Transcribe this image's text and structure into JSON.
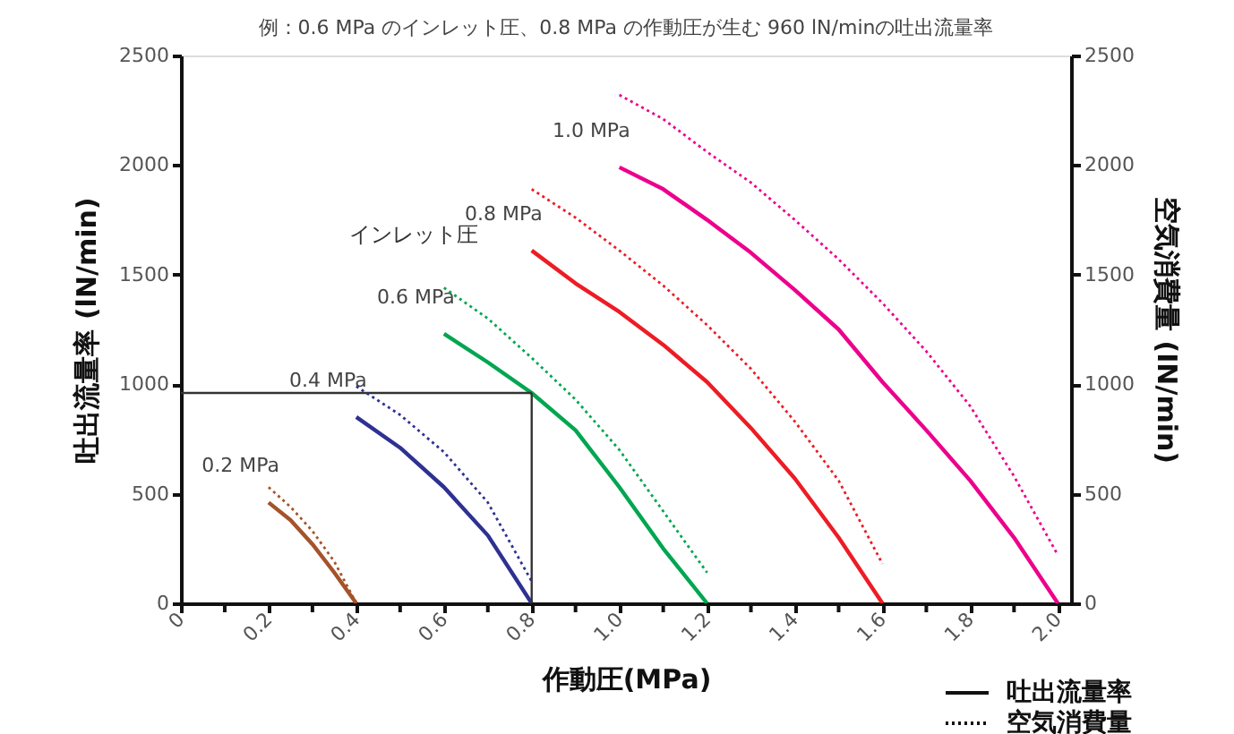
{
  "chart_data": {
    "type": "line",
    "title": "例：0.6 MPa のインレット圧、0.8 MPa の作動圧が生む 960 lN/minの吐出流量率",
    "xlabel": "作動圧(MPa)",
    "ylabel": "吐出流量率 (lN/min)",
    "y2label": "空気消費量 (IN/min)",
    "xlim": [
      0,
      2.03
    ],
    "xticks": [
      0,
      {
        "value": 0.1,
        "label": null
      },
      0.2,
      {
        "value": 0.3,
        "label": null
      },
      0.4,
      {
        "value": 0.5,
        "label": null
      },
      0.6,
      {
        "value": 0.7,
        "label": null
      },
      0.8,
      {
        "value": 0.9,
        "label": null
      },
      {
        "value": 1.0,
        "label": "1.0"
      },
      {
        "value": 1.1,
        "label": null
      },
      1.2,
      {
        "value": 1.3,
        "label": null
      },
      1.4,
      {
        "value": 1.5,
        "label": null
      },
      1.6,
      {
        "value": 1.7,
        "label": null
      },
      1.8,
      {
        "value": 1.9,
        "label": null
      },
      {
        "value": 2.0,
        "label": "2.0"
      }
    ],
    "ylim": [
      0,
      2500
    ],
    "yticks": [
      0,
      500,
      1000,
      1500,
      2000,
      2500
    ],
    "y2lim": [
      0,
      2500
    ],
    "y2ticks": [
      0,
      500,
      1000,
      1500,
      2000,
      2500
    ],
    "grid": false,
    "marker": "none",
    "series": [
      {
        "name": "0.2 MPa",
        "color": "#a5532a",
        "line_style": "solid",
        "x": [
          0.2,
          0.25,
          0.3,
          0.35,
          0.4
        ],
        "values": [
          460,
          380,
          270,
          140,
          0
        ]
      },
      {
        "name": "0.4 MPa",
        "color": "#2e3192",
        "line_style": "solid",
        "x": [
          0.4,
          0.5,
          0.6,
          0.7,
          0.8
        ],
        "values": [
          850,
          710,
          530,
          310,
          0
        ]
      },
      {
        "name": "0.6 MPa",
        "color": "#00a650",
        "line_style": "solid",
        "x": [
          0.6,
          0.7,
          0.8,
          0.9,
          1.0,
          1.1,
          1.2
        ],
        "values": [
          1230,
          1100,
          960,
          790,
          530,
          250,
          0
        ]
      },
      {
        "name": "0.8 MPa",
        "color": "#ed1c24",
        "line_style": "solid",
        "x": [
          0.8,
          0.9,
          1.0,
          1.1,
          1.2,
          1.3,
          1.4,
          1.5,
          1.6
        ],
        "values": [
          1610,
          1460,
          1330,
          1180,
          1010,
          800,
          570,
          300,
          0
        ]
      },
      {
        "name": "1.0 MPa",
        "color": "#ec008c",
        "line_style": "solid",
        "x": [
          1.0,
          1.1,
          1.2,
          1.3,
          1.4,
          1.5,
          1.6,
          1.7,
          1.8,
          1.9,
          2.0
        ],
        "values": [
          1990,
          1890,
          1750,
          1600,
          1430,
          1250,
          1010,
          790,
          560,
          300,
          0
        ]
      },
      {
        "color": "#a5532a",
        "line_style": "dotted",
        "axis": "y2",
        "x": [
          0.2,
          0.25,
          0.3,
          0.35,
          0.4
        ],
        "values": [
          530,
          440,
          330,
          190,
          0
        ]
      },
      {
        "color": "#2e3192",
        "line_style": "dotted",
        "axis": "y2",
        "x": [
          0.4,
          0.5,
          0.6,
          0.7,
          0.8
        ],
        "values": [
          990,
          860,
          690,
          460,
          100
        ]
      },
      {
        "color": "#00a650",
        "line_style": "dotted",
        "axis": "y2",
        "x": [
          0.6,
          0.7,
          0.8,
          0.9,
          1.0,
          1.1,
          1.2
        ],
        "values": [
          1440,
          1300,
          1120,
          930,
          700,
          420,
          140
        ]
      },
      {
        "color": "#ed1c24",
        "line_style": "dotted",
        "axis": "y2",
        "x": [
          0.8,
          0.9,
          1.0,
          1.1,
          1.2,
          1.3,
          1.4,
          1.5,
          1.6
        ],
        "values": [
          1890,
          1760,
          1610,
          1450,
          1270,
          1070,
          830,
          560,
          180
        ]
      },
      {
        "color": "#ec008c",
        "line_style": "dotted",
        "axis": "y2",
        "x": [
          1.0,
          1.1,
          1.2,
          1.3,
          1.4,
          1.5,
          1.6,
          1.7,
          1.8,
          1.9,
          2.0
        ],
        "values": [
          2320,
          2210,
          2060,
          1920,
          1750,
          1570,
          1370,
          1150,
          900,
          580,
          220
        ]
      }
    ],
    "ref_lines": [
      {
        "axis": "x",
        "value": 0.8,
        "color": "#333333"
      },
      {
        "axis": "y",
        "value": 960,
        "color": "#333333"
      }
    ],
    "annotations": [
      "インレット圧",
      "吐出流量率",
      "空気消費量"
    ]
  }
}
